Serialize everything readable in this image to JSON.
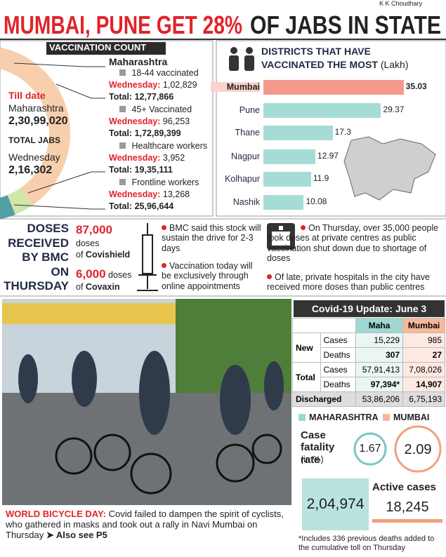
{
  "header": {
    "credit": "K K Choudhary",
    "headline_red": "MUMBAI, PUNE GET 28%",
    "headline_dark": "OF JABS IN STATE"
  },
  "vaccination": {
    "title": "VACCINATION COUNT",
    "till_date": "Till date",
    "state": "Maharashtra",
    "till_total": "2,30,99,020",
    "total_jabs": "TOTAL JABS",
    "day": "Wednesday",
    "day_total": "2,16,302",
    "heading": "Maharashtra",
    "groups": [
      {
        "name": "18-44 vaccinated",
        "wed_label": "Wednesday:",
        "wed": "1,02,829",
        "total_label": "Total:",
        "total": "12,77,866"
      },
      {
        "name": "45+ Vaccinated",
        "wed_label": "Wednesday:",
        "wed": "96,253",
        "total_label": "Total:",
        "total": "1,72,89,399"
      },
      {
        "name": "Healthcare workers",
        "wed_label": "Wednesday:",
        "wed": "3,952",
        "total_label": "Total:",
        "total": "19,35,111"
      },
      {
        "name": "Frontline workers",
        "wed_label": "Wednesday:",
        "wed": "13,268",
        "total_label": "Total:",
        "total": "25,96,644"
      }
    ]
  },
  "districts": {
    "title_line1": "DISTRICTS THAT HAVE",
    "title_line2": "VACCINATED THE MOST",
    "unit": "(Lakh)",
    "categories": [
      "Mumbai",
      "Pune",
      "Thane",
      "Nagpur",
      "Kolhapur",
      "Nashik"
    ],
    "values": [
      35.03,
      29.37,
      17.3,
      12.97,
      11.9,
      10.08
    ]
  },
  "doses": {
    "label_lines": [
      "DOSES",
      "RECEIVED",
      "BY BMC",
      "ON",
      "THURSDAY"
    ],
    "covishield_count": "87,000",
    "covishield_doses": "doses",
    "covishield_of": "of",
    "covishield_name": "Covishield",
    "covaxin_count": "6,000",
    "covaxin_doses": "doses",
    "covaxin_of": "of",
    "covaxin_name": "Covaxin",
    "bmc_notes": [
      "BMC said this stock will sustain the drive for 2-3 days",
      "Vaccination today will be exclusively through online appointments"
    ],
    "private_notes": [
      "On Thursday, over 35,000 people took doses at private centres as public vaccination shut down due to shortage of doses",
      "Of late, private hospitals in the city have received more doses than public centres"
    ]
  },
  "photo_caption": {
    "lead": "WORLD BICYCLE DAY:",
    "text": "Covid failed to dampen the spirit of cyclists, who gathered in masks and took out a rally in Navi Mumbai on Thursday",
    "ref": "➤ Also see P5"
  },
  "covid_update": {
    "title": "Covid-19 Update: June 3",
    "columns": [
      "Maha",
      "Mumbai"
    ],
    "groups": [
      {
        "name": "New",
        "rows": [
          {
            "label": "Cases",
            "values": [
              "15,229",
              "985"
            ]
          },
          {
            "label": "Deaths",
            "values": [
              "307",
              "27"
            ]
          }
        ]
      },
      {
        "name": "Total",
        "rows": [
          {
            "label": "Cases",
            "values": [
              "57,91,413",
              "7,08,026"
            ]
          },
          {
            "label": "Deaths",
            "values": [
              "97,394*",
              "14,907"
            ]
          }
        ]
      }
    ],
    "discharged": {
      "label": "Discharged",
      "values": [
        "53,86,206",
        "6,75,193"
      ]
    }
  },
  "fatality": {
    "legend": [
      "MAHARASHTRA",
      "MUMBAI"
    ],
    "label": "Case fatality rate",
    "unit": "(in %)",
    "maha": "1.67",
    "mumbai": "2.09"
  },
  "active": {
    "label": "Active cases",
    "maha": "2,04,974",
    "mumbai": "18,245"
  },
  "footnote": "*Includes 336 previous deaths added to the cumulative toll on Thursday"
}
